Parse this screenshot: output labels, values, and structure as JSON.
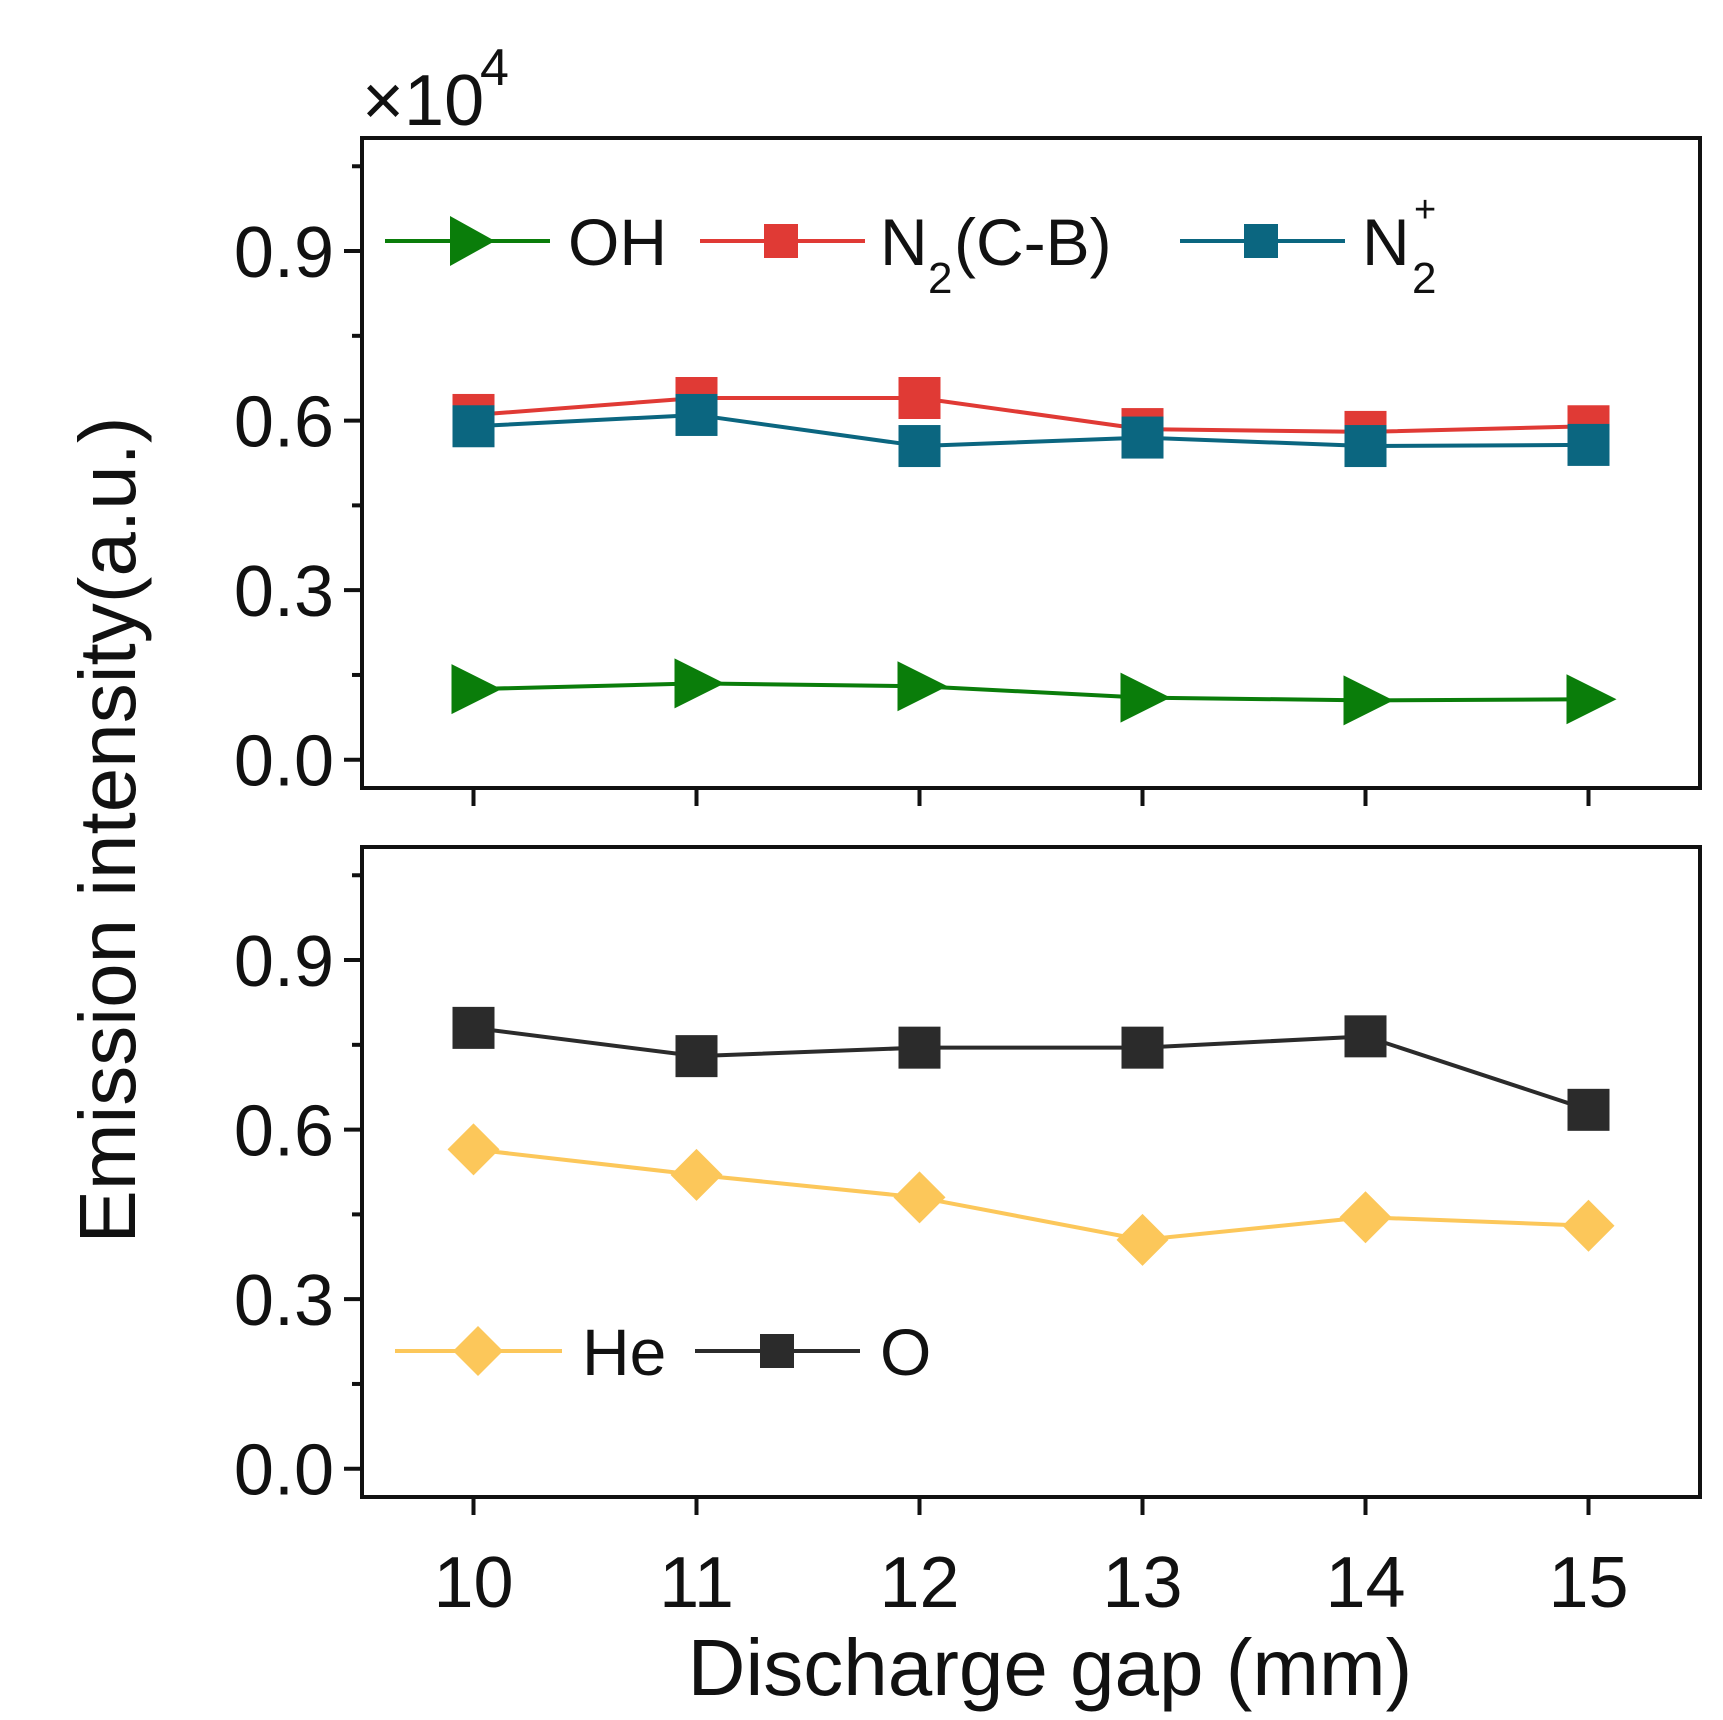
{
  "chart_data": {
    "type": "line",
    "multiplier_label": "×10",
    "multiplier_exponent": "4",
    "xlabel": "Discharge gap (mm)",
    "ylabel": "Emission intensity(a.u.)",
    "x": [
      10,
      11,
      12,
      13,
      14,
      15
    ],
    "x_tick_labels": [
      "10",
      "11",
      "12",
      "13",
      "14",
      "15"
    ],
    "y_tick_labels": [
      "0.0",
      "0.3",
      "0.6",
      "0.9"
    ],
    "y_ticks": [
      0.0,
      0.3,
      0.6,
      0.9
    ],
    "xlim": [
      9.5,
      15.5
    ],
    "panels": [
      {
        "name": "top",
        "ylim": [
          -0.05,
          1.1
        ],
        "series": [
          {
            "name": "OH",
            "color": "#0a7d0a",
            "marker": "triangle-right",
            "values": [
              0.125,
              0.135,
              0.13,
              0.11,
              0.105,
              0.107
            ]
          },
          {
            "name": "N2(C-B)",
            "color": "#e03a35",
            "marker": "square",
            "values": [
              0.61,
              0.64,
              0.64,
              0.585,
              0.58,
              0.59
            ]
          },
          {
            "name": "N2+",
            "color": "#0b6680",
            "marker": "square",
            "values": [
              0.59,
              0.61,
              0.555,
              0.57,
              0.555,
              0.557
            ]
          }
        ]
      },
      {
        "name": "bottom",
        "ylim": [
          -0.05,
          1.1
        ],
        "series": [
          {
            "name": "He",
            "color": "#fcc75a",
            "marker": "diamond",
            "values": [
              0.565,
              0.52,
              0.48,
              0.405,
              0.445,
              0.43
            ]
          },
          {
            "name": "O",
            "color": "#2b2b2b",
            "marker": "square",
            "values": [
              0.78,
              0.73,
              0.745,
              0.745,
              0.765,
              0.635
            ]
          }
        ]
      }
    ],
    "legend": {
      "top": {
        "placement": "top",
        "labels": [
          "OH",
          "N",
          "2",
          "(C-B)",
          "N",
          "2",
          "+"
        ]
      },
      "bottom": {
        "placement": "lower-left",
        "labels": [
          "He",
          "O"
        ]
      }
    }
  }
}
